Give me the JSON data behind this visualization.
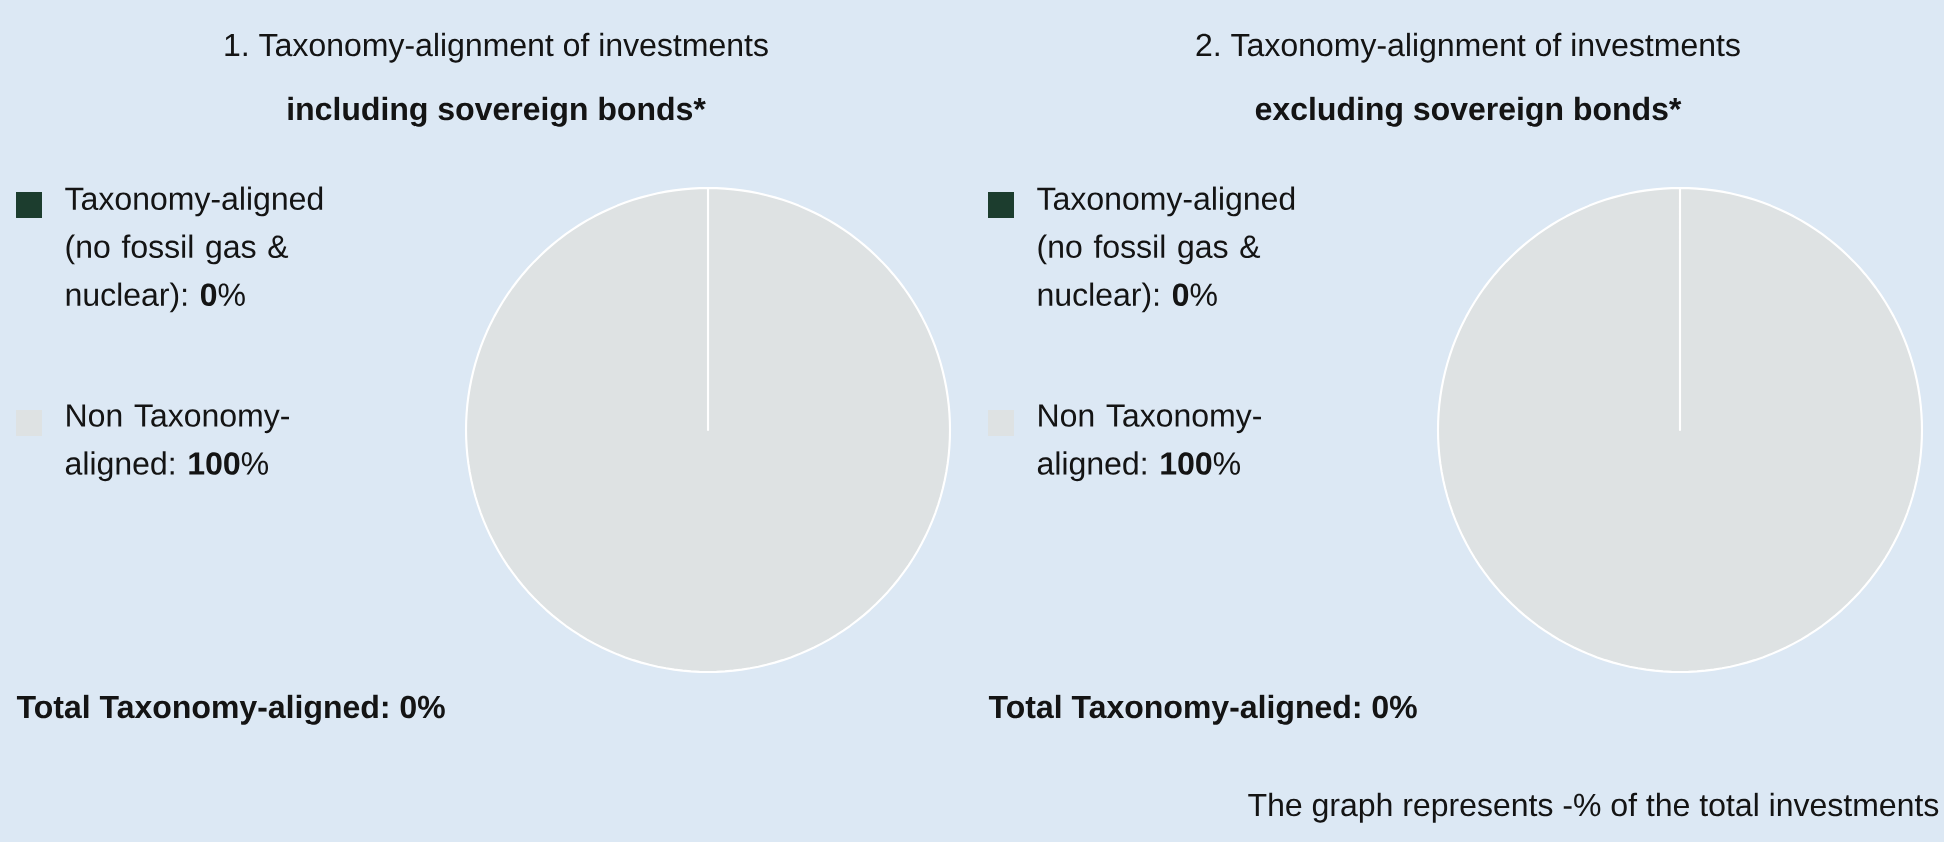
{
  "chart_data": [
    {
      "type": "pie",
      "title": "1. Taxonomy-alignment of investments",
      "subtitle": "including sovereign bonds*",
      "categories": [
        "Taxonomy-aligned (no fossil gas & nuclear): **0**%",
        "Non Taxonomy-aligned: **100**%"
      ],
      "values": [
        0,
        100
      ],
      "colors": [
        "#1c3d2e",
        "#dee2e3"
      ],
      "legend": "left",
      "annotations": [
        "Total Taxonomy-aligned: 0%"
      ]
    },
    {
      "type": "pie",
      "title": "2. Taxonomy-alignment of investments",
      "subtitle": "excluding sovereign bonds*",
      "categories": [
        "Taxonomy-aligned (no fossil gas & nuclear): **0**%",
        "Non Taxonomy-aligned: **100**%"
      ],
      "values": [
        0,
        100
      ],
      "colors": [
        "#1c3d2e",
        "#dee2e3"
      ],
      "legend": "left",
      "annotations": [
        "Total Taxonomy-aligned: 0%",
        "The graph represents -% of the total investments"
      ]
    }
  ]
}
